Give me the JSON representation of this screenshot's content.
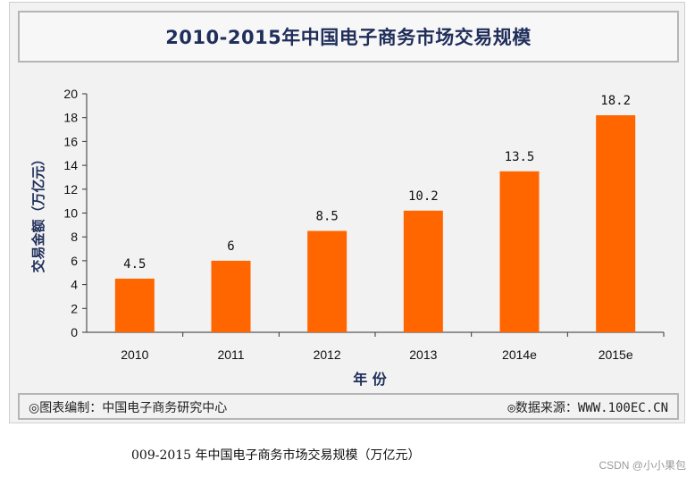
{
  "chart_data": {
    "type": "bar",
    "title": "2010-2015年中国电子商务市场交易规模",
    "xlabel": "年 份",
    "ylabel": "交易金额（万亿元）",
    "categories": [
      "2010",
      "2011",
      "2012",
      "2013",
      "2014e",
      "2015e"
    ],
    "values": [
      4.5,
      6,
      8.5,
      10.2,
      13.5,
      18.2
    ],
    "value_labels": [
      "4.5",
      "6",
      "8.5",
      "10.2",
      "13.5",
      "18.2"
    ],
    "ylim": [
      0,
      20
    ],
    "yticks": [
      0,
      2,
      4,
      6,
      8,
      10,
      12,
      14,
      16,
      18,
      20
    ],
    "bar_color": "#ff6600",
    "grid": false
  },
  "footer": {
    "source_left": "◎图表编制：中国电子商务研究中心",
    "source_right": "◎数据来源：WWW.100EC.CN"
  },
  "caption": "009-2015 年中国电子商务市场交易规模（万亿元）",
  "watermark": "CSDN @小小果包"
}
